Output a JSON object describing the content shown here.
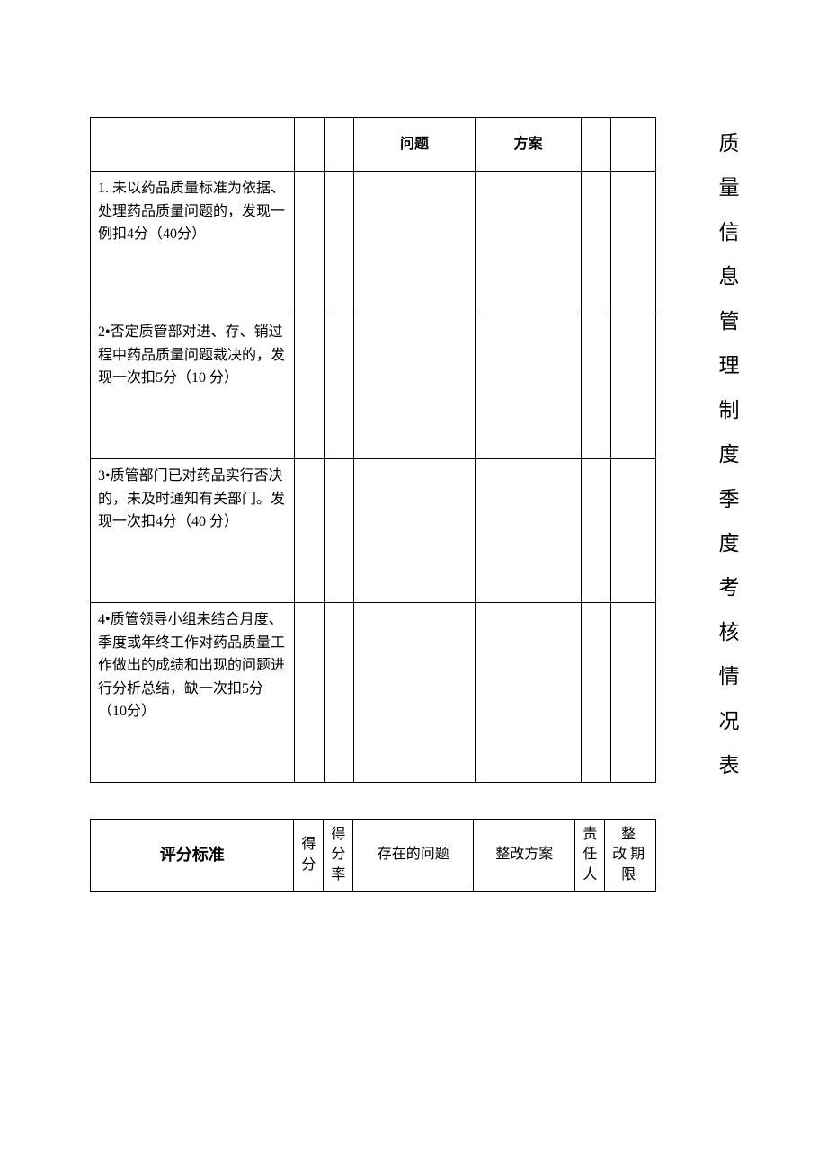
{
  "vertical_title": "质量信息管理制度季度考核情况表",
  "upper_table": {
    "header": {
      "problem": "问题",
      "solution": "方案"
    },
    "rows": [
      "1. 未以药品质量标准为依据、处理药品质量问题的，发现一例扣4分（40分）",
      "2•否定质管部对进、存、销过程中药品质量问题裁决的，发现一次扣5分（10 分）",
      "3•质管部门已对药品实行否决的，未及时通知有关部门。发现一次扣4分（40 分）",
      "4•质管领导小组未结合月度、季度或年终工作对药品质量工作做出的成绩和出现的问题进行分析总结，缺一次扣5分（10分）"
    ]
  },
  "lower_table": {
    "header": {
      "criteria": "评分标准",
      "score": "得分",
      "rate": "得分率",
      "problem": "存在的问题",
      "solution": "整改方案",
      "person": "责任人",
      "deadline": "整 改期 限"
    }
  },
  "style": {
    "border_color": "#000000",
    "background": "#ffffff",
    "font_family": "SimSun",
    "body_fontsize": 16,
    "title_fontsize": 23
  }
}
